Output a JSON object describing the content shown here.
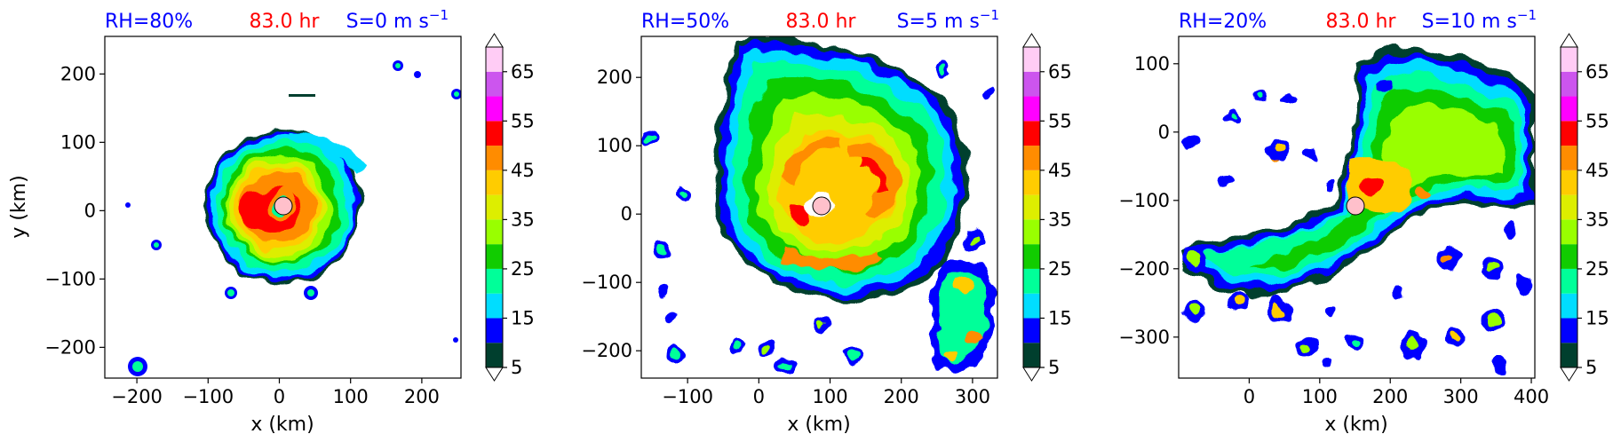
{
  "chart_data": [
    {
      "type": "heatmap",
      "title_left": "RH=80%",
      "title_center": "83.0 hr",
      "title_right": "S=0 m s",
      "title_right_sup": "−1",
      "xlabel": "x (km)",
      "ylabel": "y (km)",
      "xlim": [
        -245,
        255
      ],
      "ylim": [
        -245,
        255
      ],
      "xticks": [
        -200,
        -100,
        0,
        100,
        200
      ],
      "xtick_labels": [
        "−200",
        "−100",
        "0",
        "100",
        "200"
      ],
      "yticks": [
        -200,
        -100,
        0,
        100,
        200
      ],
      "ytick_labels": [
        "−200",
        "−100",
        "0",
        "100",
        "200"
      ],
      "center_marker": [
        10,
        10
      ],
      "colorbar": {
        "levels": [
          5,
          10,
          15,
          20,
          25,
          30,
          35,
          40,
          45,
          50,
          55,
          60,
          65,
          70
        ],
        "tick_values": [
          5,
          15,
          25,
          35,
          45,
          55,
          65
        ],
        "tick_labels": [
          "5",
          "15",
          "25",
          "35",
          "45",
          "55",
          "65"
        ],
        "colors": [
          "#003f2e",
          "#0000ff",
          "#00ddff",
          "#00ff99",
          "#11cc00",
          "#99ff00",
          "#ddee00",
          "#ffcc00",
          "#ff8c00",
          "#ff0000",
          "#ff00ff",
          "#cc55ee",
          "#ffccf5"
        ]
      }
    },
    {
      "type": "heatmap",
      "title_left": "RH=50%",
      "title_center": "83.0 hr",
      "title_right": "S=5 m s",
      "title_right_sup": "−1",
      "xlabel": "x (km)",
      "ylabel": "",
      "xlim": [
        -165,
        335
      ],
      "ylim": [
        -240,
        260
      ],
      "xticks": [
        -100,
        0,
        100,
        200,
        300
      ],
      "xtick_labels": [
        "−100",
        "0",
        "100",
        "200",
        "300"
      ],
      "yticks": [
        -200,
        -100,
        0,
        100,
        200
      ],
      "ytick_labels": [
        "−200",
        "−100",
        "0",
        "100",
        "200"
      ],
      "center_marker": [
        80,
        10
      ],
      "colorbar": {
        "levels": [
          5,
          10,
          15,
          20,
          25,
          30,
          35,
          40,
          45,
          50,
          55,
          60,
          65,
          70
        ],
        "tick_values": [
          5,
          15,
          25,
          35,
          45,
          55,
          65
        ],
        "tick_labels": [
          "5",
          "15",
          "25",
          "35",
          "45",
          "55",
          "65"
        ],
        "colors": [
          "#003f2e",
          "#0000ff",
          "#00ddff",
          "#00ff99",
          "#11cc00",
          "#99ff00",
          "#ddee00",
          "#ffcc00",
          "#ff8c00",
          "#ff0000",
          "#ff00ff",
          "#cc55ee",
          "#ffccf5"
        ]
      }
    },
    {
      "type": "heatmap",
      "title_left": "RH=20%",
      "title_center": "83.0 hr",
      "title_right": "S=10 m s",
      "title_right_sup": "−1",
      "xlabel": "x (km)",
      "ylabel": "",
      "xlim": [
        -100,
        405
      ],
      "ylim": [
        -360,
        140
      ],
      "xticks": [
        0,
        100,
        200,
        300,
        400
      ],
      "xtick_labels": [
        "0",
        "100",
        "200",
        "300",
        "400"
      ],
      "yticks": [
        -300,
        -200,
        -100,
        0,
        100
      ],
      "ytick_labels": [
        "−300",
        "−200",
        "−100",
        "0",
        "100"
      ],
      "center_marker": [
        150,
        -110
      ],
      "colorbar": {
        "levels": [
          5,
          10,
          15,
          20,
          25,
          30,
          35,
          40,
          45,
          50,
          55,
          60,
          65,
          70
        ],
        "tick_values": [
          5,
          15,
          25,
          35,
          45,
          55,
          65
        ],
        "tick_labels": [
          "5",
          "15",
          "25",
          "35",
          "45",
          "55",
          "65"
        ],
        "colors": [
          "#003f2e",
          "#0000ff",
          "#00ddff",
          "#00ff99",
          "#11cc00",
          "#99ff00",
          "#ddee00",
          "#ffcc00",
          "#ff8c00",
          "#ff0000",
          "#ff00ff",
          "#cc55ee",
          "#ffccf5"
        ]
      }
    }
  ],
  "style": {
    "title_left_color": "#0000ff",
    "title_center_color": "#ff0000",
    "title_right_color": "#0000ff",
    "marker_fill": "#ffc0cb"
  }
}
